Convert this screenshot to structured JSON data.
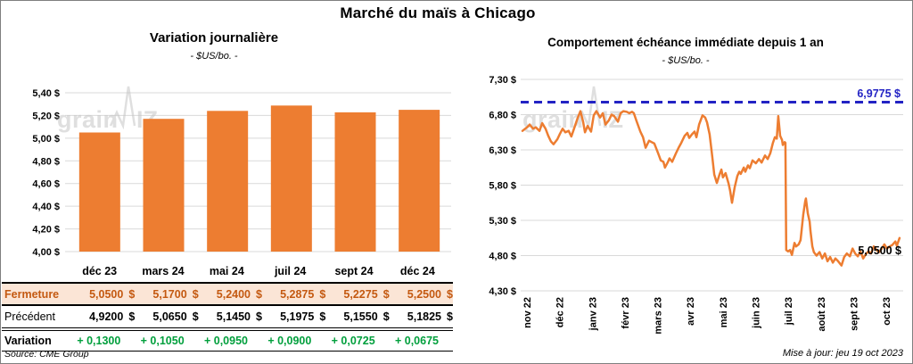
{
  "title": "Marché du maïs à Chicago",
  "watermark": "grainWIZ",
  "colors": {
    "series_orange": "#ED7D31",
    "ref_blue": "#2323C4",
    "variation_green": "#009F3C",
    "fermeture_bg": "#FBE5D6",
    "fermeture_text": "#C45911",
    "grid": "#D9D9D9",
    "watermark_gray": "#C6C6C6"
  },
  "chart_data": [
    {
      "type": "bar",
      "title": "Variation journalière",
      "subtitle": "- $US/bo. -",
      "categories": [
        "déc 23",
        "mars 24",
        "mai 24",
        "juil 24",
        "sept 24",
        "déc 24"
      ],
      "values": [
        5.05,
        5.17,
        5.24,
        5.2875,
        5.2275,
        5.25
      ],
      "ylim": [
        4.0,
        5.4
      ],
      "ytick_values": [
        5.4,
        5.2,
        5.0,
        4.8,
        4.6,
        4.4,
        4.2,
        4.0
      ],
      "ytick_labels": [
        "5,40 $",
        "5,20 $",
        "5,00 $",
        "4,80 $",
        "4,60 $",
        "4,40 $",
        "4,20 $",
        "4,00 $"
      ],
      "grid": true,
      "legend": "none"
    },
    {
      "type": "line",
      "title": "Comportement échéance immédiate depuis 1 an",
      "subtitle": "- $US/bo. -",
      "x_ticks": [
        "nov 22",
        "déc 22",
        "janv 23",
        "févr 23",
        "mars 23",
        "avr 23",
        "mai 23",
        "juin 23",
        "juil 23",
        "août 23",
        "sept 23",
        "oct 23"
      ],
      "ylim": [
        4.3,
        7.3
      ],
      "ytick_values": [
        7.3,
        6.8,
        6.3,
        5.8,
        5.3,
        4.8,
        4.3
      ],
      "ytick_labels": [
        "7,30 $",
        "6,80 $",
        "6,30 $",
        "5,80 $",
        "5,30 $",
        "4,80 $",
        "4,30 $"
      ],
      "ref_line": {
        "value": 6.9775,
        "label": "6,9775 $"
      },
      "last_value": 5.05,
      "last_label": "5,0500 $",
      "grid": true,
      "points": [
        [
          0.0,
          6.57
        ],
        [
          0.012,
          6.62
        ],
        [
          0.019,
          6.66
        ],
        [
          0.028,
          6.6
        ],
        [
          0.035,
          6.62
        ],
        [
          0.045,
          6.57
        ],
        [
          0.052,
          6.68
        ],
        [
          0.061,
          6.6
        ],
        [
          0.068,
          6.5
        ],
        [
          0.075,
          6.42
        ],
        [
          0.082,
          6.38
        ],
        [
          0.092,
          6.45
        ],
        [
          0.099,
          6.53
        ],
        [
          0.106,
          6.6
        ],
        [
          0.113,
          6.55
        ],
        [
          0.122,
          6.57
        ],
        [
          0.129,
          6.49
        ],
        [
          0.136,
          6.6
        ],
        [
          0.146,
          6.76
        ],
        [
          0.153,
          6.85
        ],
        [
          0.16,
          6.7
        ],
        [
          0.165,
          6.55
        ],
        [
          0.172,
          6.64
        ],
        [
          0.181,
          6.56
        ],
        [
          0.188,
          6.79
        ],
        [
          0.195,
          6.85
        ],
        [
          0.205,
          6.76
        ],
        [
          0.212,
          6.82
        ],
        [
          0.219,
          6.66
        ],
        [
          0.228,
          6.72
        ],
        [
          0.235,
          6.8
        ],
        [
          0.242,
          6.78
        ],
        [
          0.252,
          6.7
        ],
        [
          0.259,
          6.82
        ],
        [
          0.266,
          6.85
        ],
        [
          0.275,
          6.84
        ],
        [
          0.282,
          6.82
        ],
        [
          0.289,
          6.84
        ],
        [
          0.294,
          6.82
        ],
        [
          0.301,
          6.71
        ],
        [
          0.311,
          6.56
        ],
        [
          0.318,
          6.48
        ],
        [
          0.325,
          6.33
        ],
        [
          0.334,
          6.43
        ],
        [
          0.341,
          6.41
        ],
        [
          0.348,
          6.39
        ],
        [
          0.358,
          6.25
        ],
        [
          0.365,
          6.15
        ],
        [
          0.372,
          6.13
        ],
        [
          0.376,
          6.05
        ],
        [
          0.384,
          6.13
        ],
        [
          0.388,
          6.18
        ],
        [
          0.395,
          6.13
        ],
        [
          0.405,
          6.25
        ],
        [
          0.412,
          6.33
        ],
        [
          0.419,
          6.4
        ],
        [
          0.428,
          6.5
        ],
        [
          0.435,
          6.54
        ],
        [
          0.44,
          6.47
        ],
        [
          0.447,
          6.52
        ],
        [
          0.454,
          6.56
        ],
        [
          0.459,
          6.48
        ],
        [
          0.466,
          6.66
        ],
        [
          0.475,
          6.79
        ],
        [
          0.482,
          6.76
        ],
        [
          0.487,
          6.69
        ],
        [
          0.494,
          6.52
        ],
        [
          0.501,
          6.2
        ],
        [
          0.506,
          5.95
        ],
        [
          0.513,
          5.83
        ],
        [
          0.52,
          5.95
        ],
        [
          0.525,
          6.02
        ],
        [
          0.529,
          5.91
        ],
        [
          0.536,
          5.97
        ],
        [
          0.544,
          5.82
        ],
        [
          0.548,
          5.72
        ],
        [
          0.553,
          5.55
        ],
        [
          0.56,
          5.77
        ],
        [
          0.567,
          5.93
        ],
        [
          0.572,
          5.99
        ],
        [
          0.576,
          5.96
        ],
        [
          0.584,
          6.05
        ],
        [
          0.588,
          5.99
        ],
        [
          0.595,
          6.08
        ],
        [
          0.6,
          6.04
        ],
        [
          0.607,
          6.15
        ],
        [
          0.616,
          6.11
        ],
        [
          0.624,
          6.17
        ],
        [
          0.631,
          6.12
        ],
        [
          0.64,
          6.22
        ],
        [
          0.647,
          6.17
        ],
        [
          0.654,
          6.25
        ],
        [
          0.661,
          6.4
        ],
        [
          0.666,
          6.48
        ],
        [
          0.671,
          6.46
        ],
        [
          0.675,
          6.78
        ],
        [
          0.68,
          6.5
        ],
        [
          0.685,
          6.44
        ],
        [
          0.687,
          6.37
        ],
        [
          0.692,
          6.41
        ],
        [
          0.694,
          6.4
        ],
        [
          0.696,
          4.88
        ],
        [
          0.701,
          4.86
        ],
        [
          0.706,
          4.88
        ],
        [
          0.711,
          4.81
        ],
        [
          0.718,
          4.98
        ],
        [
          0.722,
          4.93
        ],
        [
          0.729,
          4.96
        ],
        [
          0.734,
          5.02
        ],
        [
          0.741,
          5.38
        ],
        [
          0.746,
          5.57
        ],
        [
          0.748,
          5.61
        ],
        [
          0.753,
          5.4
        ],
        [
          0.758,
          5.28
        ],
        [
          0.76,
          5.15
        ],
        [
          0.765,
          4.93
        ],
        [
          0.769,
          4.85
        ],
        [
          0.776,
          4.8
        ],
        [
          0.784,
          4.85
        ],
        [
          0.791,
          4.76
        ],
        [
          0.798,
          4.83
        ],
        [
          0.805,
          4.72
        ],
        [
          0.812,
          4.78
        ],
        [
          0.819,
          4.7
        ],
        [
          0.826,
          4.76
        ],
        [
          0.833,
          4.72
        ],
        [
          0.842,
          4.66
        ],
        [
          0.849,
          4.78
        ],
        [
          0.856,
          4.83
        ],
        [
          0.864,
          4.79
        ],
        [
          0.871,
          4.9
        ],
        [
          0.878,
          4.83
        ],
        [
          0.885,
          4.79
        ],
        [
          0.892,
          4.86
        ],
        [
          0.899,
          4.76
        ],
        [
          0.906,
          4.82
        ],
        [
          0.913,
          4.86
        ],
        [
          0.92,
          4.83
        ],
        [
          0.927,
          4.93
        ],
        [
          0.934,
          4.88
        ],
        [
          0.941,
          4.85
        ],
        [
          0.948,
          4.9
        ],
        [
          0.955,
          4.96
        ],
        [
          0.962,
          4.9
        ],
        [
          0.969,
          4.93
        ],
        [
          0.976,
          4.95
        ],
        [
          0.984,
          5.0
        ],
        [
          0.988,
          4.94
        ],
        [
          0.995,
          5.05
        ]
      ]
    }
  ],
  "table": {
    "col_headers": [
      "déc 23",
      "mars 24",
      "mai 24",
      "juil 24",
      "sept 24",
      "déc 24"
    ],
    "rows": [
      {
        "label": "Fermeture",
        "style": "fermeture",
        "currency": "$",
        "values": [
          "5,0500",
          "5,1700",
          "5,2400",
          "5,2875",
          "5,2275",
          "5,2500"
        ]
      },
      {
        "label": "Précédent",
        "style": "precedent",
        "currency": "$",
        "values": [
          "4,9200",
          "5,0650",
          "5,1450",
          "5,1975",
          "5,1550",
          "5,1825"
        ]
      },
      {
        "label": "Variation",
        "style": "variation",
        "currency": "",
        "values": [
          "+ 0,1300",
          "+ 0,1050",
          "+ 0,0950",
          "+ 0,0900",
          "+ 0,0725",
          "+ 0,0675"
        ]
      }
    ],
    "source": "Source: CME Group"
  },
  "footer": {
    "updated": "Mise à jour: jeu 19 oct 2023"
  }
}
